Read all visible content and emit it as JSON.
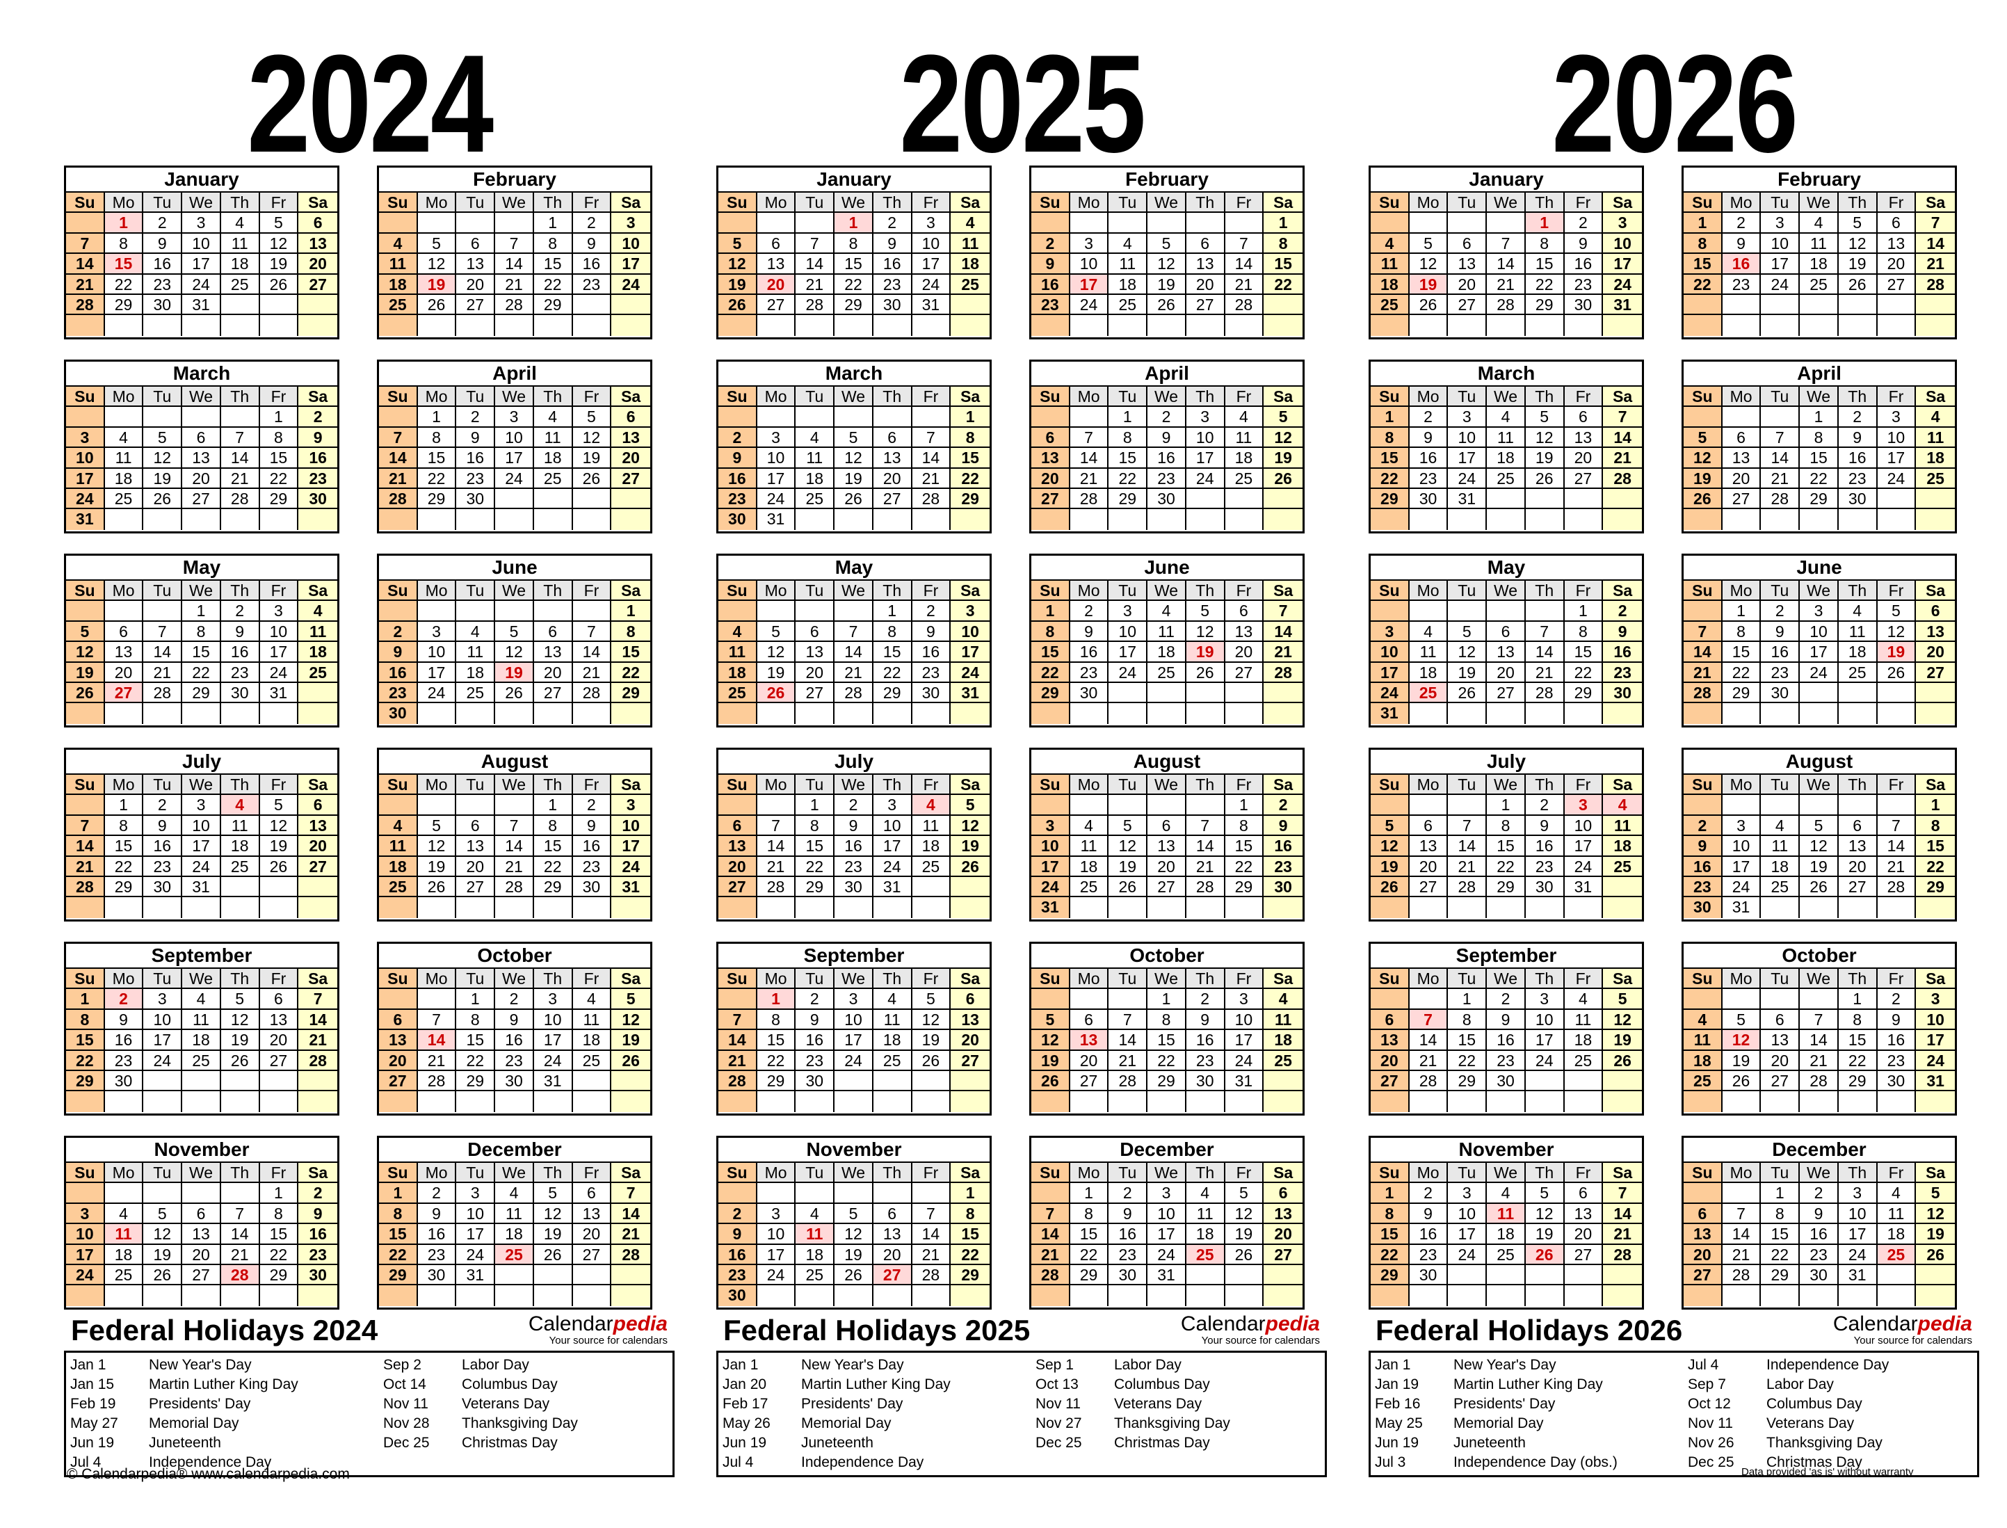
{
  "weekday_headers": [
    "Su",
    "Mo",
    "Tu",
    "We",
    "Th",
    "Fr",
    "Sa"
  ],
  "colors": {
    "sunday_bg": "#fdcc99",
    "saturday_bg": "#ffffcc",
    "header_bg": "#e8e8e8",
    "holiday_bg": "#ffd9d9",
    "holiday_text": "#cc0000"
  },
  "years": [
    {
      "year": "2024",
      "months": [
        {
          "name": "January",
          "start": 1,
          "days": 31,
          "holidays": [
            1,
            15
          ]
        },
        {
          "name": "February",
          "start": 4,
          "days": 29,
          "holidays": [
            19
          ]
        },
        {
          "name": "March",
          "start": 5,
          "days": 31,
          "holidays": []
        },
        {
          "name": "April",
          "start": 1,
          "days": 30,
          "holidays": []
        },
        {
          "name": "May",
          "start": 3,
          "days": 31,
          "holidays": [
            27
          ]
        },
        {
          "name": "June",
          "start": 6,
          "days": 30,
          "holidays": [
            19
          ]
        },
        {
          "name": "July",
          "start": 1,
          "days": 31,
          "holidays": [
            4
          ]
        },
        {
          "name": "August",
          "start": 4,
          "days": 31,
          "holidays": []
        },
        {
          "name": "September",
          "start": 0,
          "days": 30,
          "holidays": [
            2
          ]
        },
        {
          "name": "October",
          "start": 2,
          "days": 31,
          "holidays": [
            14
          ]
        },
        {
          "name": "November",
          "start": 5,
          "days": 30,
          "holidays": [
            11,
            28
          ]
        },
        {
          "name": "December",
          "start": 0,
          "days": 31,
          "holidays": [
            25
          ]
        }
      ],
      "holidays_title": "Federal Holidays 2024",
      "holidays_left": [
        {
          "date": "Jan 1",
          "name": "New Year's Day"
        },
        {
          "date": "Jan 15",
          "name": "Martin Luther King Day"
        },
        {
          "date": "Feb 19",
          "name": "Presidents' Day"
        },
        {
          "date": "May 27",
          "name": "Memorial Day"
        },
        {
          "date": "Jun 19",
          "name": "Juneteenth"
        },
        {
          "date": "Jul 4",
          "name": "Independence Day"
        }
      ],
      "holidays_right": [
        {
          "date": "Sep 2",
          "name": "Labor Day"
        },
        {
          "date": "Oct 14",
          "name": "Columbus Day"
        },
        {
          "date": "Nov 11",
          "name": "Veterans Day"
        },
        {
          "date": "Nov 28",
          "name": "Thanksgiving Day"
        },
        {
          "date": "Dec 25",
          "name": "Christmas Day"
        }
      ]
    },
    {
      "year": "2025",
      "months": [
        {
          "name": "January",
          "start": 3,
          "days": 31,
          "holidays": [
            1,
            20
          ]
        },
        {
          "name": "February",
          "start": 6,
          "days": 28,
          "holidays": [
            17
          ]
        },
        {
          "name": "March",
          "start": 6,
          "days": 31,
          "holidays": []
        },
        {
          "name": "April",
          "start": 2,
          "days": 30,
          "holidays": []
        },
        {
          "name": "May",
          "start": 4,
          "days": 31,
          "holidays": [
            26
          ]
        },
        {
          "name": "June",
          "start": 0,
          "days": 30,
          "holidays": [
            19
          ]
        },
        {
          "name": "July",
          "start": 2,
          "days": 31,
          "holidays": [
            4
          ]
        },
        {
          "name": "August",
          "start": 5,
          "days": 31,
          "holidays": []
        },
        {
          "name": "September",
          "start": 1,
          "days": 30,
          "holidays": [
            1
          ]
        },
        {
          "name": "October",
          "start": 3,
          "days": 31,
          "holidays": [
            13
          ]
        },
        {
          "name": "November",
          "start": 6,
          "days": 30,
          "holidays": [
            11,
            27
          ]
        },
        {
          "name": "December",
          "start": 1,
          "days": 31,
          "holidays": [
            25
          ]
        }
      ],
      "holidays_title": "Federal Holidays 2025",
      "holidays_left": [
        {
          "date": "Jan 1",
          "name": "New Year's Day"
        },
        {
          "date": "Jan 20",
          "name": "Martin Luther King Day"
        },
        {
          "date": "Feb 17",
          "name": "Presidents' Day"
        },
        {
          "date": "May 26",
          "name": "Memorial Day"
        },
        {
          "date": "Jun 19",
          "name": "Juneteenth"
        },
        {
          "date": "Jul 4",
          "name": "Independence Day"
        }
      ],
      "holidays_right": [
        {
          "date": "Sep 1",
          "name": "Labor Day"
        },
        {
          "date": "Oct 13",
          "name": "Columbus Day"
        },
        {
          "date": "Nov 11",
          "name": "Veterans Day"
        },
        {
          "date": "Nov 27",
          "name": "Thanksgiving Day"
        },
        {
          "date": "Dec 25",
          "name": "Christmas Day"
        }
      ]
    },
    {
      "year": "2026",
      "months": [
        {
          "name": "January",
          "start": 4,
          "days": 31,
          "holidays": [
            1,
            19
          ]
        },
        {
          "name": "February",
          "start": 0,
          "days": 28,
          "holidays": [
            16
          ]
        },
        {
          "name": "March",
          "start": 0,
          "days": 31,
          "holidays": []
        },
        {
          "name": "April",
          "start": 3,
          "days": 30,
          "holidays": []
        },
        {
          "name": "May",
          "start": 5,
          "days": 31,
          "holidays": [
            25
          ]
        },
        {
          "name": "June",
          "start": 1,
          "days": 30,
          "holidays": [
            19
          ]
        },
        {
          "name": "July",
          "start": 3,
          "days": 31,
          "holidays": [
            3,
            4
          ]
        },
        {
          "name": "August",
          "start": 6,
          "days": 31,
          "holidays": []
        },
        {
          "name": "September",
          "start": 2,
          "days": 30,
          "holidays": [
            7
          ]
        },
        {
          "name": "October",
          "start": 4,
          "days": 31,
          "holidays": [
            12
          ]
        },
        {
          "name": "November",
          "start": 0,
          "days": 30,
          "holidays": [
            11,
            26
          ]
        },
        {
          "name": "December",
          "start": 2,
          "days": 31,
          "holidays": [
            25
          ]
        }
      ],
      "holidays_title": "Federal Holidays 2026",
      "holidays_left": [
        {
          "date": "Jan 1",
          "name": "New Year's Day"
        },
        {
          "date": "Jan 19",
          "name": "Martin Luther King Day"
        },
        {
          "date": "Feb 16",
          "name": "Presidents' Day"
        },
        {
          "date": "May 25",
          "name": "Memorial Day"
        },
        {
          "date": "Jun 19",
          "name": "Juneteenth"
        },
        {
          "date": "Jul 3",
          "name": "Independence Day (obs.)"
        }
      ],
      "holidays_right": [
        {
          "date": "Jul 4",
          "name": "Independence Day"
        },
        {
          "date": "Sep 7",
          "name": "Labor Day"
        },
        {
          "date": "Oct 12",
          "name": "Columbus Day"
        },
        {
          "date": "Nov 11",
          "name": "Veterans Day"
        },
        {
          "date": "Nov 26",
          "name": "Thanksgiving Day"
        },
        {
          "date": "Dec 25",
          "name": "Christmas Day"
        }
      ]
    }
  ],
  "brand": {
    "name_plain": "Calendar",
    "name_accent": "pedia",
    "tagline": "Your source for calendars"
  },
  "footer": {
    "copyright": "© Calendarpedia®   www.calendarpedia.com",
    "disclaimer": "Data provided 'as is' without warranty"
  }
}
